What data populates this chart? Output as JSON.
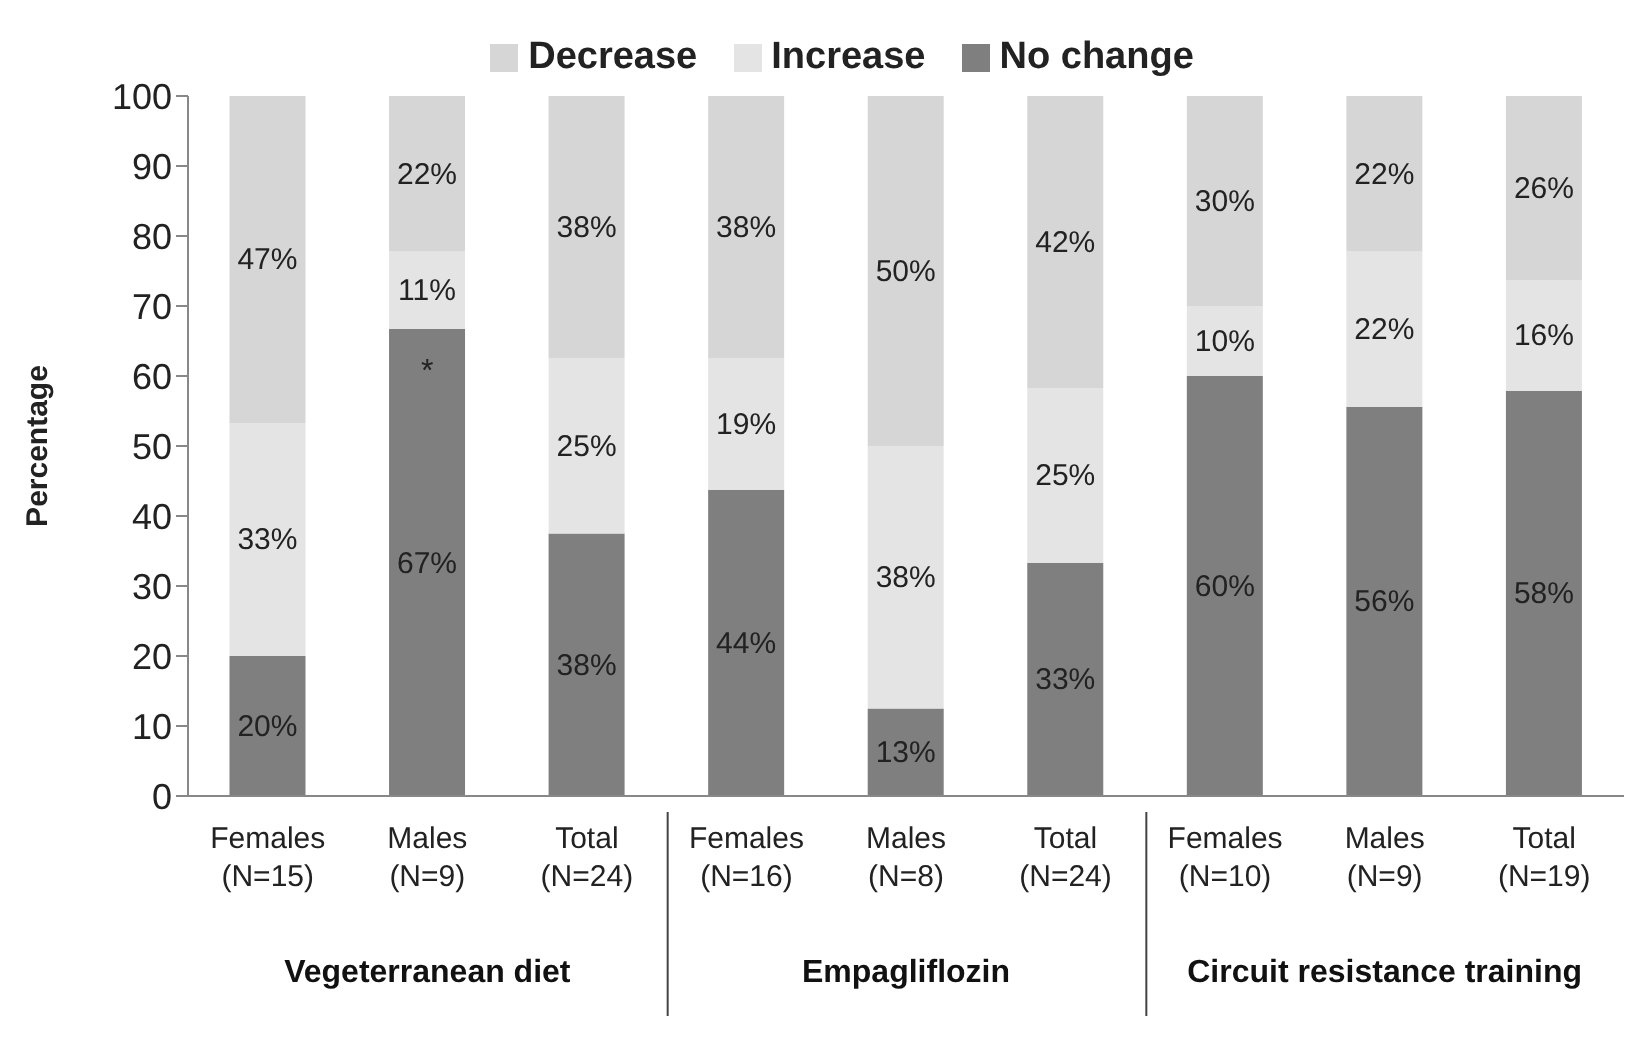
{
  "chart_data": {
    "type": "bar",
    "stacked": true,
    "ylabel": "Percentage",
    "categories": [
      "Females\n(N=15)",
      "Males\n(N=9)",
      "Total\n(N=24)",
      "Females\n(N=16)",
      "Males\n(N=8)",
      "Total\n(N=24)",
      "Females\n(N=10)",
      "Males\n(N=9)",
      "Total\n(N=19)"
    ],
    "series": [
      {
        "name": "No change",
        "color": "#7f7f7f",
        "values": [
          20,
          66.7,
          37.5,
          43.75,
          12.5,
          33.3,
          60,
          55.6,
          57.9
        ],
        "value_labels": [
          "20%",
          "67%",
          "38%",
          "44%",
          "13%",
          "33%",
          "60%",
          "56%",
          "58%"
        ]
      },
      {
        "name": "Increase",
        "color": "#e4e4e4",
        "values": [
          33.3,
          11.1,
          25,
          18.75,
          37.5,
          25,
          10,
          22.2,
          15.8
        ],
        "value_labels": [
          "33%",
          "11%",
          "25%",
          "19%",
          "38%",
          "25%",
          "10%",
          "22%",
          "16%"
        ]
      },
      {
        "name": "Decrease",
        "color": "#d6d6d6",
        "values": [
          46.7,
          22.2,
          37.5,
          37.5,
          50,
          41.7,
          30,
          22.2,
          26.3
        ],
        "value_labels": [
          "47%",
          "22%",
          "38%",
          "38%",
          "50%",
          "42%",
          "30%",
          "22%",
          "26%"
        ]
      }
    ],
    "ylim": [
      0,
      100
    ],
    "yticks": [
      0,
      10,
      20,
      30,
      40,
      50,
      60,
      70,
      80,
      90,
      100
    ],
    "grid": false,
    "legend": "top",
    "annotations": [
      "Vegeterranean diet",
      "Empagliflozin",
      "Circuit resistance training",
      {
        "text": "*",
        "x": "Males\n(N=9)",
        "y": 66.7
      }
    ]
  }
}
